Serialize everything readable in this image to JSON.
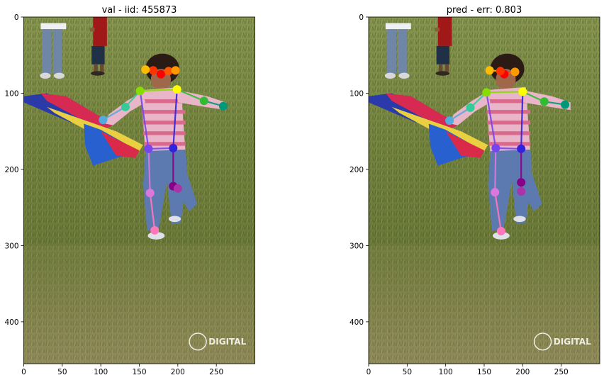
{
  "chart_data": [
    {
      "type": "keypoint-image",
      "title": "val - iid: 455873",
      "xlim": [
        0,
        300
      ],
      "ylim": [
        455,
        0
      ],
      "xticks": [
        0,
        50,
        100,
        150,
        200,
        250
      ],
      "yticks": [
        0,
        100,
        200,
        300,
        400
      ],
      "watermark": "DIGITAL",
      "keypoints": [
        {
          "name": "nose",
          "x": 178,
          "y": 75,
          "color": "#ff0000"
        },
        {
          "name": "left-eye",
          "x": 188,
          "y": 71,
          "color": "#ff5500"
        },
        {
          "name": "right-eye",
          "x": 168,
          "y": 70,
          "color": "#ff3300"
        },
        {
          "name": "left-ear",
          "x": 197,
          "y": 70,
          "color": "#ff9900"
        },
        {
          "name": "right-ear",
          "x": 158,
          "y": 69,
          "color": "#ffbb00"
        },
        {
          "name": "left-shoulder",
          "x": 199,
          "y": 95,
          "color": "#ffff00"
        },
        {
          "name": "right-shoulder",
          "x": 151,
          "y": 97,
          "color": "#88dd00"
        },
        {
          "name": "left-elbow",
          "x": 234,
          "y": 110,
          "color": "#33bb33"
        },
        {
          "name": "right-elbow",
          "x": 132,
          "y": 118,
          "color": "#33cc99"
        },
        {
          "name": "left-wrist",
          "x": 259,
          "y": 117,
          "color": "#009977"
        },
        {
          "name": "right-wrist",
          "x": 103,
          "y": 135,
          "color": "#55aadd"
        },
        {
          "name": "left-hip",
          "x": 194,
          "y": 172,
          "color": "#3322dd"
        },
        {
          "name": "right-hip",
          "x": 162,
          "y": 173,
          "color": "#7744ee"
        },
        {
          "name": "left-knee",
          "x": 194,
          "y": 222,
          "color": "#880088"
        },
        {
          "name": "right-knee",
          "x": 164,
          "y": 231,
          "color": "#dd77dd"
        },
        {
          "name": "left-ankle",
          "x": 200,
          "y": 225,
          "color": "#aa33aa"
        },
        {
          "name": "right-ankle",
          "x": 170,
          "y": 280,
          "color": "#ff77bb"
        }
      ]
    },
    {
      "type": "keypoint-image",
      "title": "pred - err: 0.803",
      "xlim": [
        0,
        300
      ],
      "ylim": [
        455,
        0
      ],
      "xticks": [
        0,
        50,
        100,
        150,
        200,
        250
      ],
      "yticks": [
        0,
        100,
        200,
        300,
        400
      ],
      "watermark": "DIGITAL",
      "keypoints": [
        {
          "name": "nose",
          "x": 176,
          "y": 75,
          "color": "#ff0000"
        },
        {
          "name": "left-eye",
          "x": 190,
          "y": 72,
          "color": "#ff5500"
        },
        {
          "name": "right-eye",
          "x": 171,
          "y": 71,
          "color": "#ff3300"
        },
        {
          "name": "left-ear",
          "x": 190,
          "y": 72,
          "color": "#ff9900"
        },
        {
          "name": "right-ear",
          "x": 157,
          "y": 70,
          "color": "#ffbb00"
        },
        {
          "name": "left-shoulder",
          "x": 200,
          "y": 98,
          "color": "#ffff00"
        },
        {
          "name": "right-shoulder",
          "x": 153,
          "y": 99,
          "color": "#88dd00"
        },
        {
          "name": "left-elbow",
          "x": 228,
          "y": 111,
          "color": "#33bb33"
        },
        {
          "name": "right-elbow",
          "x": 132,
          "y": 119,
          "color": "#33cc99"
        },
        {
          "name": "left-wrist",
          "x": 255,
          "y": 115,
          "color": "#009977"
        },
        {
          "name": "right-wrist",
          "x": 105,
          "y": 136,
          "color": "#55aadd"
        },
        {
          "name": "left-hip",
          "x": 198,
          "y": 173,
          "color": "#3322dd"
        },
        {
          "name": "right-hip",
          "x": 165,
          "y": 172,
          "color": "#7744ee"
        },
        {
          "name": "left-knee",
          "x": 198,
          "y": 217,
          "color": "#880088"
        },
        {
          "name": "right-knee",
          "x": 164,
          "y": 230,
          "color": "#dd77dd"
        },
        {
          "name": "left-ankle",
          "x": 198,
          "y": 229,
          "color": "#aa33aa"
        },
        {
          "name": "right-ankle",
          "x": 172,
          "y": 281,
          "color": "#ff77bb"
        }
      ]
    }
  ]
}
